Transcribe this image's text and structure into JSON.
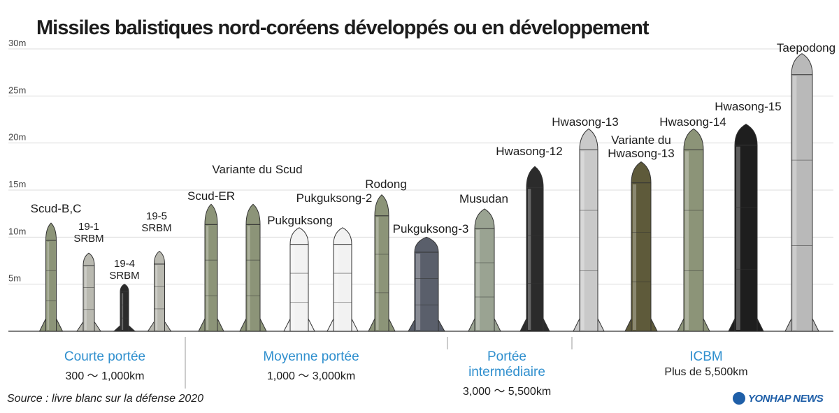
{
  "chart_data": {
    "type": "bar",
    "title": "Missiles balistiques nord-coréens développés ou en développement",
    "y_ticks": [
      "30m",
      "25m",
      "20m",
      "15m",
      "10m",
      "5m"
    ],
    "ylim": [
      0,
      30
    ],
    "grid": true,
    "missiles": [
      {
        "name": "Scud-B,C",
        "length_m": 11.5,
        "color": "#8c9478",
        "group": "courte"
      },
      {
        "name": "19-1\nSRBM",
        "length_m": 8.3,
        "color": "#b9b9b0",
        "group": "courte"
      },
      {
        "name": "19-4\nSRBM",
        "length_m": 5.0,
        "color": "#2b2b2b",
        "group": "courte"
      },
      {
        "name": "19-5\nSRBM",
        "length_m": 8.5,
        "color": "#b9b9b0",
        "group": "courte"
      },
      {
        "name": "Scud-ER",
        "length_m": 13.5,
        "color": "#8c9478",
        "group": "moyenne"
      },
      {
        "name": "Variante du Scud",
        "length_m": 13.5,
        "color": "#8c9478",
        "group": "moyenne"
      },
      {
        "name": "Pukguksong",
        "length_m": 11.0,
        "color": "#f2f2f2",
        "group": "moyenne"
      },
      {
        "name": "Pukguksong-2",
        "length_m": 11.0,
        "color": "#f2f2f2",
        "group": "moyenne"
      },
      {
        "name": "Rodong",
        "length_m": 14.5,
        "color": "#8c9478",
        "group": "moyenne"
      },
      {
        "name": "Pukguksong-3",
        "length_m": 10.0,
        "color": "#5a5f6b",
        "group": "moyenne"
      },
      {
        "name": "Musudan",
        "length_m": 13.0,
        "color": "#9aa392",
        "group": "intermediaire"
      },
      {
        "name": "Hwasong-12",
        "length_m": 17.5,
        "color": "#2b2b2b",
        "group": "intermediaire"
      },
      {
        "name": "Hwasong-13",
        "length_m": 21.5,
        "color": "#c9c9c9",
        "group": "icbm"
      },
      {
        "name": "Variante du\nHwasong-13",
        "length_m": 18.0,
        "color": "#5e5a3a",
        "group": "icbm"
      },
      {
        "name": "Hwasong-14",
        "length_m": 21.5,
        "color": "#8c9478",
        "group": "icbm"
      },
      {
        "name": "Hwasong-15",
        "length_m": 22.0,
        "color": "#1e1e1e",
        "group": "icbm"
      },
      {
        "name": "Taepodong",
        "length_m": 29.5,
        "color": "#b9b9b9",
        "group": "icbm"
      }
    ],
    "categories": [
      {
        "key": "courte",
        "name": "Courte portée",
        "range": "300 ～ 1,000km"
      },
      {
        "key": "moyenne",
        "name": "Moyenne portée",
        "range": "1,000 ～ 3,000km"
      },
      {
        "key": "intermediaire",
        "name": "Portée\nintermédiaire",
        "range": "3,000 ～ 5,500km"
      },
      {
        "key": "icbm",
        "name": "ICBM",
        "range": "Plus de 5,500km"
      }
    ],
    "source": "Source : livre blanc sur la défense 2020",
    "credit": "YONHAP NEWS"
  }
}
